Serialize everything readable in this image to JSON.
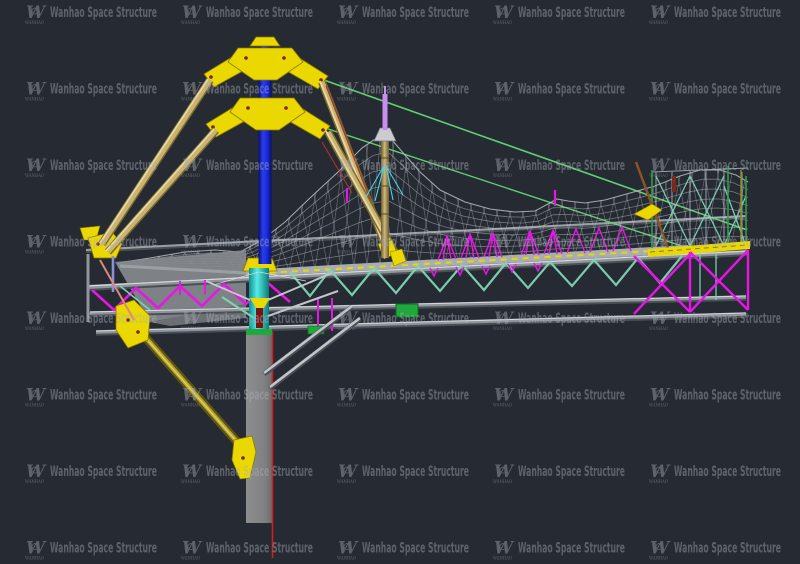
{
  "app": {
    "type": "cad-viewport-screenshot"
  },
  "background_color": "#252a33",
  "watermark": {
    "text": "Wanhao Space Structure",
    "logo_subtext": "WANHAO",
    "color": "#aab0ba",
    "opacity": 0.42,
    "rows": 8,
    "cols": 5,
    "col_start": 26,
    "col_step": 156,
    "row_baseline_start": 17,
    "row_step": 76.5,
    "text_length": 107,
    "font_size": 14,
    "logo_glyph": "W"
  },
  "model": {
    "description": "3D wireframe model of a mast-supported cable-net membrane roof with lattice truss, concrete column and guy struts",
    "colors": {
      "mast_blue": "#1b2fe0",
      "mast_blue_dark": "#0a1070",
      "plate_yellow": "#ead800",
      "plate_edge": "#8a7a00",
      "bolt_red": "#7a1f1f",
      "strut_tan_light": "#e6d9a8",
      "strut_tan": "#c9b370",
      "strut_tan_dark": "#7e6a2e",
      "strut_olive": "#b4a42c",
      "strut_olive_dark": "#5f5410",
      "cable_green": "#5ecf6e",
      "edge_green": "#2f9e4a",
      "truss_magenta": "#e616e6",
      "web_teal": "#7fd4b4",
      "base_cyan": "#2fd8d2",
      "base_cyan_dark": "#128f8b",
      "band_green": "#1fa83c",
      "column_gray": "#7f8082",
      "edge_red": "#cf1f1f",
      "tip_violet": "#c98df2",
      "net_gray": "#c3c7cc",
      "tube_gray": "#8f959b",
      "tube_light": "#c2c6ca",
      "tube_dark": "#4a4f55",
      "brown": "#8a5524",
      "salmon": "#d98a78",
      "purple": "#8b8fd9",
      "guy_cyan": "#45d6ea",
      "red_wire": "#c03030",
      "insert_darkred": "#7a1414"
    }
  }
}
